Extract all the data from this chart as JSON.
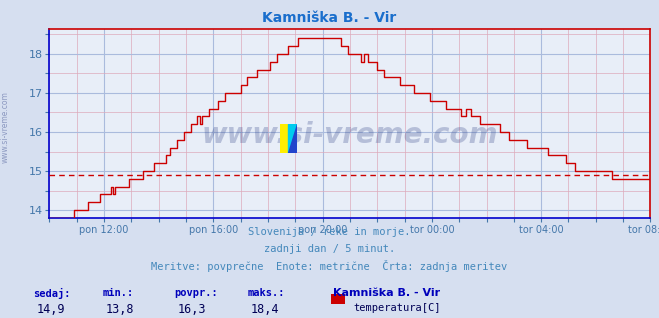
{
  "title": "Kamniška B. - Vir",
  "title_color": "#1a6ecc",
  "bg_color": "#d6dff0",
  "plot_bg_color": "#e8eef8",
  "grid_major_color": "#aabbdd",
  "grid_minor_color": "#ddbbcc",
  "line_color": "#cc0000",
  "avg_line_color": "#cc0000",
  "avg_line_value": 14.9,
  "ylim": [
    13.8,
    18.65
  ],
  "yticks": [
    14,
    15,
    16,
    17,
    18
  ],
  "tick_label_color": "#4477aa",
  "watermark": "www.si-vreme.com",
  "watermark_color": "#334488",
  "watermark_alpha": 0.28,
  "side_label": "www.si-vreme.com",
  "side_label_color": "#334488",
  "side_label_alpha": 0.45,
  "footer_lines": [
    "Slovenija / reke in morje.",
    "zadnji dan / 5 minut.",
    "Meritve: povprečne  Enote: metrične  Črta: zadnja meritev"
  ],
  "footer_color": "#4488bb",
  "footer_fontsize": 7.5,
  "stats_labels": [
    "sedaj:",
    "min.:",
    "povpr.:",
    "maks.:"
  ],
  "stats_values": [
    "14,9",
    "13,8",
    "16,3",
    "18,4"
  ],
  "stats_label_color": "#0000bb",
  "stats_val_color": "#000055",
  "legend_title": "Kamniška B. - Vir",
  "legend_series": "temperatura[C]",
  "legend_color": "#cc0000",
  "x_tick_labels": [
    "pon 12:00",
    "pon 16:00",
    "pon 20:00",
    "tor 00:00",
    "tor 04:00",
    "tor 08:00"
  ],
  "axis_spine_color": "#cc0000",
  "axis_bottom_color": "#0000cc",
  "axis_left_color": "#0000cc",
  "n_points": 265
}
